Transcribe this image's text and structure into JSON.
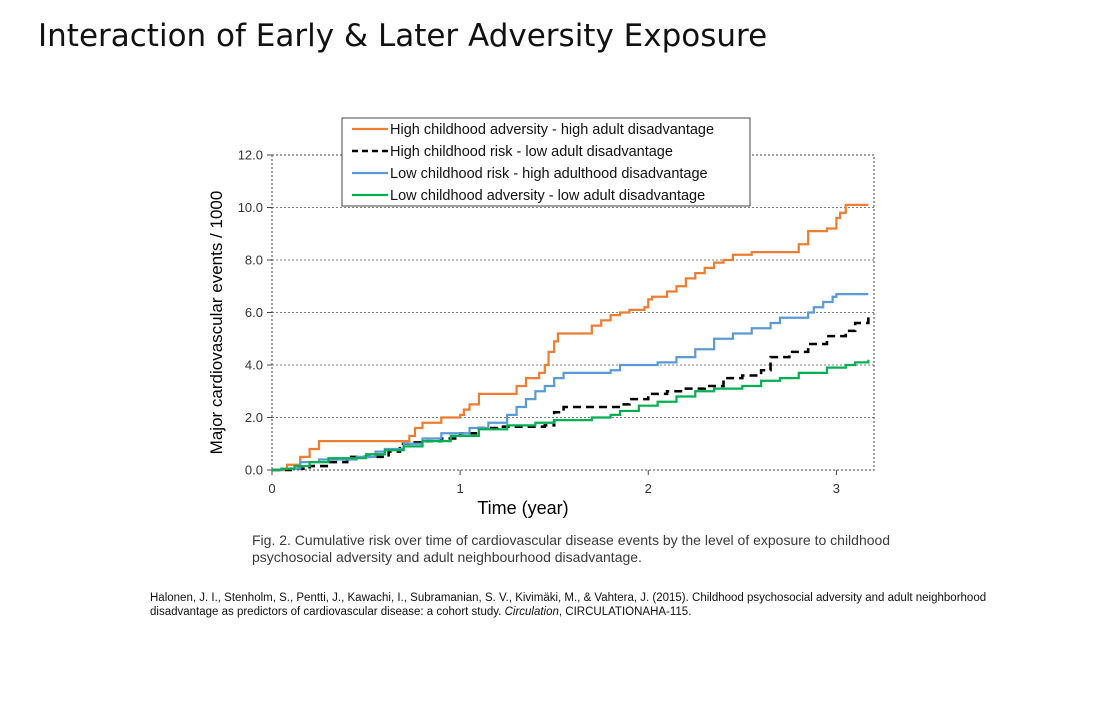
{
  "slide": {
    "title": "Interaction of Early & Later Adversity Exposure"
  },
  "caption": {
    "text": "Fig. 2. Cumulative risk over time of cardiovascular disease events by the level of exposure to childhood psychosocial adversity and adult neighbourhood disadvantage."
  },
  "citation": {
    "before": "Halonen, J. I., Stenholm, S., Pentti, J., Kawachi, I., Subramanian, S. V., Kivimäki, M., & Vahtera, J. (2015). Childhood psychosocial adversity and adult neighborhood disadvantage as predictors of cardiovascular disease: a cohort study.",
    "journal": "Circulation",
    "after": ", CIRCULATIONAHA-115."
  },
  "chart_data": {
    "type": "line",
    "xlabel": "Time (year)",
    "ylabel": "Major cardiovascular events / 1000",
    "xlim": [
      0,
      3.2
    ],
    "ylim": [
      0,
      12
    ],
    "xticks": [
      "0",
      "1",
      "2",
      "3"
    ],
    "yticks": [
      "0.0",
      "2.0",
      "4.0",
      "6.0",
      "8.0",
      "10.0",
      "12.0"
    ],
    "grid": true,
    "legend_position": "top",
    "series": [
      {
        "name": "High childhood adversity - high adult disadvantage",
        "color": "#ED7D31",
        "dash": "solid",
        "x": [
          0,
          0.08,
          0.15,
          0.2,
          0.25,
          0.7,
          0.73,
          0.76,
          0.8,
          0.9,
          1.0,
          1.02,
          1.05,
          1.1,
          1.3,
          1.35,
          1.42,
          1.45,
          1.47,
          1.5,
          1.52,
          1.55,
          1.7,
          1.75,
          1.8,
          1.85,
          1.9,
          1.98,
          2.0,
          2.02,
          2.1,
          2.15,
          2.2,
          2.25,
          2.3,
          2.35,
          2.4,
          2.45,
          2.5,
          2.55,
          2.6,
          2.65,
          2.8,
          2.85,
          2.95,
          3.0,
          3.02,
          3.05,
          3.1,
          3.17
        ],
        "y": [
          0,
          0.2,
          0.5,
          0.8,
          1.1,
          1.1,
          1.3,
          1.6,
          1.8,
          2.0,
          2.1,
          2.3,
          2.5,
          2.9,
          3.2,
          3.5,
          3.7,
          4.0,
          4.5,
          4.9,
          5.2,
          5.2,
          5.5,
          5.7,
          5.9,
          6.0,
          6.1,
          6.2,
          6.5,
          6.6,
          6.8,
          7.0,
          7.3,
          7.5,
          7.7,
          7.9,
          8.0,
          8.2,
          8.2,
          8.3,
          8.3,
          8.3,
          8.6,
          9.1,
          9.2,
          9.6,
          9.8,
          10.1,
          10.1,
          10.1
        ]
      },
      {
        "name": "High childhood risk - low adult disadvantage",
        "color": "#000000",
        "dash": "dashed",
        "x": [
          0,
          0.1,
          0.2,
          0.3,
          0.4,
          0.55,
          0.62,
          0.68,
          0.73,
          0.8,
          0.9,
          1.0,
          1.1,
          1.2,
          1.3,
          1.45,
          1.5,
          1.55,
          1.7,
          1.8,
          1.85,
          1.9,
          2.0,
          2.1,
          2.2,
          2.3,
          2.4,
          2.5,
          2.58,
          2.6,
          2.65,
          2.75,
          2.85,
          2.95,
          3.05,
          3.1,
          3.17
        ],
        "y": [
          0,
          0.05,
          0.15,
          0.3,
          0.5,
          0.5,
          0.7,
          1.0,
          1.05,
          1.1,
          1.2,
          1.4,
          1.6,
          1.65,
          1.65,
          1.7,
          2.2,
          2.4,
          2.4,
          2.4,
          2.5,
          2.7,
          2.9,
          3.0,
          3.1,
          3.2,
          3.5,
          3.6,
          3.6,
          3.8,
          4.3,
          4.5,
          4.8,
          5.1,
          5.3,
          5.6,
          6.0
        ]
      },
      {
        "name": "Low childhood risk - high adulthood disadvantage",
        "color": "#5B9BD5",
        "dash": "solid",
        "x": [
          0,
          0.05,
          0.15,
          0.25,
          0.45,
          0.55,
          0.6,
          0.7,
          0.8,
          0.9,
          1.05,
          1.15,
          1.25,
          1.3,
          1.35,
          1.4,
          1.45,
          1.5,
          1.55,
          1.65,
          1.7,
          1.8,
          1.85,
          1.9,
          2.0,
          2.05,
          2.15,
          2.25,
          2.35,
          2.45,
          2.55,
          2.65,
          2.7,
          2.85,
          2.88,
          2.93,
          2.98,
          3.0,
          3.17
        ],
        "y": [
          0,
          0.05,
          0.3,
          0.4,
          0.5,
          0.7,
          0.8,
          1.0,
          1.2,
          1.4,
          1.6,
          1.8,
          2.1,
          2.4,
          2.7,
          3.0,
          3.2,
          3.5,
          3.7,
          3.7,
          3.7,
          3.8,
          4.0,
          4.0,
          4.0,
          4.1,
          4.3,
          4.6,
          5.0,
          5.2,
          5.4,
          5.6,
          5.8,
          6.0,
          6.2,
          6.4,
          6.6,
          6.7,
          6.7
        ]
      },
      {
        "name": "Low childhood adversity - low adult disadvantage",
        "color": "#00B050",
        "dash": "solid",
        "x": [
          0,
          0.05,
          0.12,
          0.2,
          0.3,
          0.5,
          0.6,
          0.7,
          0.8,
          0.95,
          1.1,
          1.25,
          1.4,
          1.5,
          1.7,
          1.8,
          1.85,
          1.95,
          2.05,
          2.15,
          2.25,
          2.35,
          2.5,
          2.6,
          2.7,
          2.8,
          2.95,
          3.05,
          3.1,
          3.17
        ],
        "y": [
          0,
          0.05,
          0.15,
          0.3,
          0.45,
          0.6,
          0.75,
          0.9,
          1.1,
          1.3,
          1.55,
          1.7,
          1.8,
          1.9,
          2.0,
          2.1,
          2.25,
          2.45,
          2.6,
          2.8,
          3.0,
          3.1,
          3.2,
          3.4,
          3.5,
          3.7,
          3.9,
          4.0,
          4.1,
          4.2
        ]
      }
    ]
  }
}
